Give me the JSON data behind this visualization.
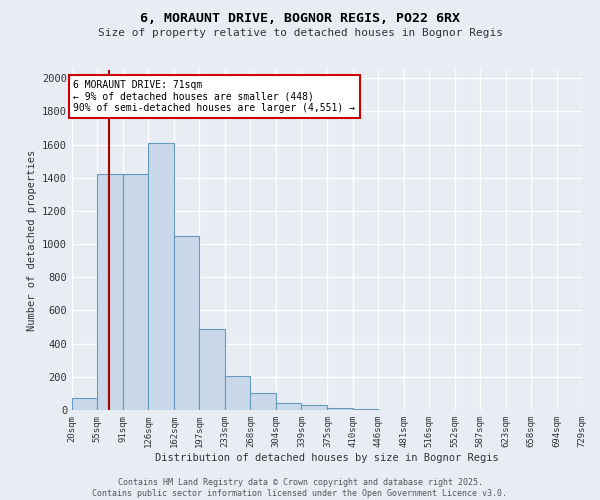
{
  "title1": "6, MORAUNT DRIVE, BOGNOR REGIS, PO22 6RX",
  "title2": "Size of property relative to detached houses in Bognor Regis",
  "xlabel": "Distribution of detached houses by size in Bognor Regis",
  "ylabel": "Number of detached properties",
  "bin_edges": [
    20,
    55,
    91,
    126,
    162,
    197,
    233,
    268,
    304,
    339,
    375,
    410,
    446,
    481,
    516,
    552,
    587,
    623,
    658,
    694,
    729
  ],
  "bar_heights": [
    75,
    1420,
    1420,
    1610,
    1050,
    490,
    205,
    105,
    40,
    30,
    15,
    5,
    3,
    2,
    1,
    1,
    1,
    1,
    1,
    1
  ],
  "bar_color": "#c9d9ea",
  "bar_edge_color": "#6699bb",
  "bg_color": "#e8edf4",
  "grid_color": "#ffffff",
  "vline_x": 71,
  "vline_color": "#aa0000",
  "annotation_text": "6 MORAUNT DRIVE: 71sqm\n← 9% of detached houses are smaller (448)\n90% of semi-detached houses are larger (4,551) →",
  "annotation_box_color": "white",
  "annotation_box_edge": "#cc0000",
  "ylim": [
    0,
    2050
  ],
  "yticks": [
    0,
    200,
    400,
    600,
    800,
    1000,
    1200,
    1400,
    1600,
    1800,
    2000
  ],
  "footer1": "Contains HM Land Registry data © Crown copyright and database right 2025.",
  "footer2": "Contains public sector information licensed under the Open Government Licence v3.0."
}
